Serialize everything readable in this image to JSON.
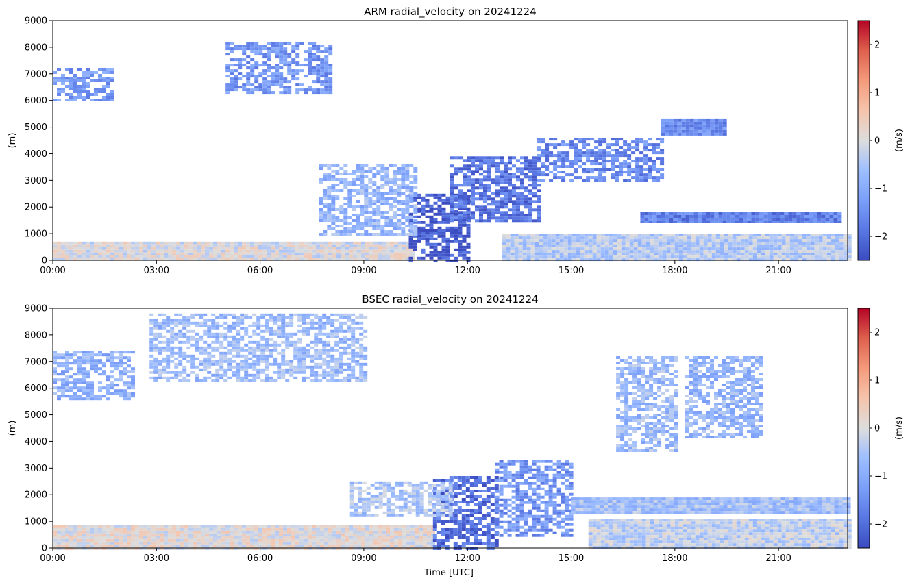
{
  "colorbar_ticks": [
    2,
    1,
    0,
    -1,
    -2
  ],
  "colorbar_tick_labels": [
    "2",
    "1",
    "0",
    "−1",
    "−2"
  ],
  "colormap": {
    "name": "coolwarm",
    "low": "#3b4cc0",
    "mid": "#dddddd",
    "high": "#b40426"
  },
  "chart_data": [
    {
      "type": "heatmap",
      "title": "ARM radial_velocity on 20241224",
      "xlabel": "",
      "ylabel": "(m)",
      "colorbar_label": "(m/s)",
      "x_ticks": [
        "00:00",
        "03:00",
        "06:00",
        "09:00",
        "12:00",
        "15:00",
        "18:00",
        "21:00"
      ],
      "y_ticks": [
        "0",
        "1000",
        "2000",
        "3000",
        "4000",
        "5000",
        "6000",
        "7000",
        "8000",
        "9000"
      ],
      "xlim_hours": [
        0,
        23
      ],
      "ylim": [
        0,
        9000
      ],
      "clim": [
        -2.5,
        2.5
      ],
      "features": [
        {
          "region": "boundary layer",
          "t": [
            0,
            10.4
          ],
          "z": [
            0,
            700
          ],
          "v": 0.0
        },
        {
          "region": "boundary layer",
          "t": [
            13.0,
            23
          ],
          "z": [
            0,
            1000
          ],
          "v": -0.4
        },
        {
          "region": "convective cloud",
          "t": [
            10.3,
            12.0
          ],
          "z": [
            0,
            2500
          ],
          "v": -2.3
        },
        {
          "region": "ascending cloud band",
          "t": [
            11.5,
            14.0
          ],
          "z": [
            1500,
            3900
          ],
          "v": -1.9
        },
        {
          "region": "ascending cloud band",
          "t": [
            14.0,
            17.6
          ],
          "z": [
            3000,
            4600
          ],
          "v": -1.6
        },
        {
          "region": "high cloud",
          "t": [
            17.6,
            19.5
          ],
          "z": [
            4700,
            5300
          ],
          "v": -1.5
        },
        {
          "region": "mid-level layer",
          "t": [
            17.0,
            22.8
          ],
          "z": [
            1450,
            1800
          ],
          "v": -1.7
        },
        {
          "region": "thin layers",
          "t": [
            7.7,
            10.5
          ],
          "z": [
            1000,
            3600
          ],
          "v": -0.8
        },
        {
          "region": "upper cloud",
          "t": [
            0.0,
            1.7
          ],
          "z": [
            6000,
            7200
          ],
          "v": -1.3
        },
        {
          "region": "upper cloud",
          "t": [
            5.0,
            8.0
          ],
          "z": [
            6300,
            8200
          ],
          "v": -1.4
        }
      ]
    },
    {
      "type": "heatmap",
      "title": "BSEC radial_velocity on 20241224",
      "xlabel": "Time [UTC]",
      "ylabel": "(m)",
      "colorbar_label": "(m/s)",
      "x_ticks": [
        "00:00",
        "03:00",
        "06:00",
        "09:00",
        "12:00",
        "15:00",
        "18:00",
        "21:00"
      ],
      "y_ticks": [
        "0",
        "1000",
        "2000",
        "3000",
        "4000",
        "5000",
        "6000",
        "7000",
        "8000",
        "9000"
      ],
      "xlim_hours": [
        0,
        23
      ],
      "ylim": [
        0,
        9000
      ],
      "clim": [
        -2.5,
        2.5
      ],
      "features": [
        {
          "region": "boundary layer",
          "t": [
            0,
            11.0
          ],
          "z": [
            0,
            850
          ],
          "v": 0.1
        },
        {
          "region": "boundary layer",
          "t": [
            15.5,
            23
          ],
          "z": [
            0,
            1100
          ],
          "v": -0.3
        },
        {
          "region": "convective cloud",
          "t": [
            11.0,
            12.8
          ],
          "z": [
            0,
            2700
          ],
          "v": -2.0
        },
        {
          "region": "convective cloud",
          "t": [
            12.8,
            15.0
          ],
          "z": [
            500,
            3300
          ],
          "v": -1.4
        },
        {
          "region": "layer",
          "t": [
            8.6,
            11.5
          ],
          "z": [
            1200,
            2500
          ],
          "v": -0.5
        },
        {
          "region": "layer",
          "t": [
            15.0,
            23
          ],
          "z": [
            1300,
            1900
          ],
          "v": -0.6
        },
        {
          "region": "upper cloud",
          "t": [
            0.0,
            2.3
          ],
          "z": [
            5600,
            7400
          ],
          "v": -0.9
        },
        {
          "region": "upper cloud",
          "t": [
            2.8,
            9.0
          ],
          "z": [
            6300,
            8800
          ],
          "v": -0.7
        },
        {
          "region": "upper cloud",
          "t": [
            16.3,
            18.0
          ],
          "z": [
            3700,
            7200
          ],
          "v": -0.7
        },
        {
          "region": "upper cloud",
          "t": [
            18.3,
            20.5
          ],
          "z": [
            4200,
            7200
          ],
          "v": -0.8
        }
      ]
    }
  ]
}
